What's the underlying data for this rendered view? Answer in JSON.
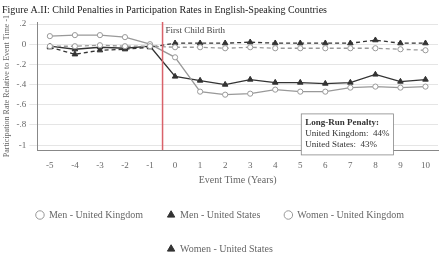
{
  "chart_data": {
    "type": "line",
    "title": "Figure A.II: Child Penalties in Participation Rates in English-Speaking Countries",
    "x_label": "Event Time (Years)",
    "y_label": "Participation Rate Relative to Event Time -1",
    "x": [
      -5,
      -4,
      -3,
      -2,
      -1,
      0,
      1,
      2,
      3,
      4,
      5,
      6,
      7,
      8,
      9,
      10
    ],
    "series": [
      {
        "name": "Men - United Kingdom",
        "color": "#999999",
        "marker": "circle",
        "line_style": "dashed",
        "values": [
          -0.02,
          -0.02,
          -0.01,
          -0.02,
          -0.02,
          -0.03,
          -0.03,
          -0.04,
          -0.03,
          -0.04,
          -0.04,
          -0.04,
          -0.04,
          -0.04,
          -0.05,
          -0.06
        ]
      },
      {
        "name": "Men - United States",
        "color": "#333333",
        "marker": "triangle",
        "line_style": "dashed",
        "values": [
          -0.03,
          -0.1,
          -0.06,
          -0.05,
          -0.03,
          0.01,
          0.01,
          0.01,
          0.02,
          0.01,
          0.01,
          0.01,
          0.01,
          0.04,
          0.01,
          0.01
        ]
      },
      {
        "name": "Women - United Kingdom",
        "color": "#999999",
        "marker": "circle",
        "line_style": "solid",
        "values": [
          0.08,
          0.09,
          0.09,
          0.07,
          0.0,
          -0.13,
          -0.47,
          -0.5,
          -0.49,
          -0.45,
          -0.47,
          -0.47,
          -0.43,
          -0.42,
          -0.43,
          -0.42
        ]
      },
      {
        "name": "Women - United States",
        "color": "#333333",
        "marker": "triangle",
        "line_style": "solid",
        "values": [
          -0.02,
          -0.05,
          -0.03,
          -0.04,
          -0.02,
          -0.32,
          -0.36,
          -0.4,
          -0.35,
          -0.38,
          -0.38,
          -0.39,
          -0.38,
          -0.3,
          -0.37,
          -0.35
        ]
      }
    ],
    "xlim": [
      -5.5,
      10.5
    ],
    "ylim": [
      -1.05,
      0.22
    ],
    "xticks": [
      -5,
      -4,
      -3,
      -2,
      -1,
      0,
      1,
      2,
      3,
      4,
      5,
      6,
      7,
      8,
      9,
      10
    ],
    "yticks": [
      -1,
      {
        "value": -0.8,
        "label": "-.8"
      },
      {
        "value": -0.6,
        "label": "-.6"
      },
      {
        "value": -0.4,
        "label": "-.4"
      },
      {
        "value": -0.2,
        "label": "-.2"
      },
      0,
      {
        "value": 0.2,
        "label": ".2"
      }
    ],
    "grid": "y",
    "legend": "bottom",
    "vlines": [
      {
        "x": -0.5,
        "color": "#d9626a"
      }
    ],
    "annotations": [
      {
        "text": "First Child Birth",
        "x": -0.38,
        "y": 0.18
      },
      {
        "text": [
          "Long-Run Penalty:",
          "United Kingdom:  44%",
          "United States:  43%"
        ],
        "x": 5.2,
        "y": -0.73
      }
    ]
  }
}
